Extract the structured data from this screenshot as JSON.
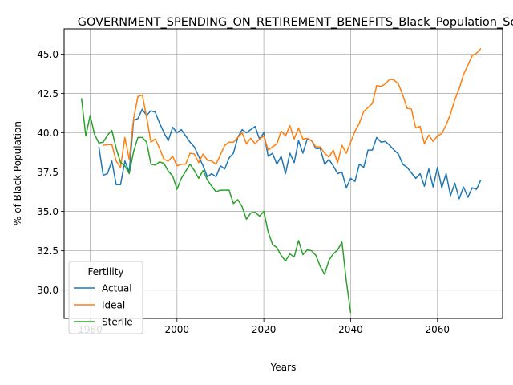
{
  "chart_data": {
    "type": "line",
    "title": "GOVERNMENT_SPENDING_ON_RETIREMENT_BENEFITS_Black_Population_Sco",
    "xlabel": "Years",
    "ylabel": "% of Black Population",
    "xlim": [
      1974,
      2075
    ],
    "ylim": [
      28.2,
      46.6
    ],
    "xticks": [
      1980,
      2000,
      2020,
      2040,
      2060
    ],
    "yticks": [
      30.0,
      32.5,
      35.0,
      37.5,
      40.0,
      42.5,
      45.0
    ],
    "xtick_labels": [
      "1980",
      "2000",
      "2020",
      "2040",
      "2060"
    ],
    "ytick_labels": [
      "30.0",
      "32.5",
      "35.0",
      "37.5",
      "40.0",
      "42.5",
      "45.0"
    ],
    "grid": true,
    "legend": {
      "title": "Fertility",
      "position": "lower-left"
    },
    "series": [
      {
        "name": "Actual",
        "color": "#1f77b4",
        "x": [
          1982,
          1983,
          1984,
          1985,
          1986,
          1987,
          1988,
          1989,
          1990,
          1991,
          1992,
          1993,
          1994,
          1995,
          1996,
          1997,
          1998,
          1999,
          2000,
          2001,
          2002,
          2003,
          2004,
          2005,
          2006,
          2007,
          2008,
          2009,
          2010,
          2011,
          2012,
          2013,
          2014,
          2015,
          2016,
          2017,
          2018,
          2019,
          2020,
          2021,
          2022,
          2023,
          2024,
          2025,
          2026,
          2027,
          2028,
          2029,
          2030,
          2031,
          2032,
          2033,
          2034,
          2035,
          2036,
          2037,
          2038,
          2039,
          2040,
          2041,
          2042,
          2043,
          2044,
          2045,
          2046,
          2047,
          2048,
          2049,
          2050,
          2051,
          2052,
          2053,
          2054,
          2055,
          2056,
          2057,
          2058,
          2059,
          2060,
          2061,
          2062,
          2063,
          2064,
          2065,
          2066,
          2067,
          2068,
          2069,
          2070
        ],
        "values": [
          39.1,
          37.3,
          37.4,
          38.2,
          36.7,
          36.7,
          38.2,
          37.5,
          40.8,
          40.9,
          41.5,
          41.1,
          41.4,
          41.3,
          40.6,
          40.0,
          39.5,
          40.35,
          40.0,
          40.2,
          39.8,
          39.4,
          39.1,
          38.5,
          37.9,
          37.2,
          37.4,
          37.2,
          37.9,
          37.7,
          38.4,
          38.7,
          39.7,
          40.2,
          40.0,
          40.2,
          40.4,
          39.6,
          40.0,
          38.5,
          38.7,
          38.0,
          38.5,
          37.4,
          38.7,
          38.1,
          39.5,
          38.7,
          39.6,
          39.5,
          39.0,
          39.0,
          38.0,
          38.3,
          37.9,
          37.4,
          37.5,
          36.5,
          37.1,
          36.9,
          38.0,
          37.8,
          38.9,
          38.9,
          39.7,
          39.4,
          39.45,
          39.2,
          38.9,
          38.65,
          38.0,
          37.8,
          37.45,
          37.1,
          37.4,
          36.6,
          37.7,
          36.55,
          37.8,
          36.5,
          37.4,
          36.0,
          36.8,
          35.8,
          36.55,
          35.9,
          36.5,
          36.4,
          37.0
        ]
      },
      {
        "name": "Ideal",
        "color": "#ff7f0e",
        "x": [
          1983,
          1984,
          1985,
          1986,
          1987,
          1988,
          1989,
          1990,
          1991,
          1992,
          1993,
          1994,
          1995,
          1996,
          1997,
          1998,
          1999,
          2000,
          2001,
          2002,
          2003,
          2004,
          2005,
          2006,
          2007,
          2008,
          2009,
          2010,
          2011,
          2012,
          2013,
          2014,
          2015,
          2016,
          2017,
          2018,
          2019,
          2020,
          2021,
          2022,
          2023,
          2024,
          2025,
          2026,
          2027,
          2028,
          2029,
          2030,
          2031,
          2032,
          2033,
          2034,
          2035,
          2036,
          2037,
          2038,
          2039,
          2040,
          2041,
          2042,
          2043,
          2044,
          2045,
          2046,
          2047,
          2048,
          2049,
          2050,
          2051,
          2052,
          2053,
          2054,
          2055,
          2056,
          2057,
          2058,
          2059,
          2060,
          2061,
          2062,
          2063,
          2064,
          2065,
          2066,
          2067,
          2068,
          2069,
          2070
        ],
        "values": [
          39.2,
          39.25,
          39.25,
          38.2,
          37.8,
          39.7,
          38.3,
          40.9,
          42.3,
          42.4,
          41.0,
          39.4,
          39.6,
          39.0,
          38.3,
          38.2,
          38.5,
          37.9,
          38.0,
          38.0,
          38.7,
          38.65,
          38.1,
          38.65,
          38.25,
          38.2,
          38.0,
          38.6,
          39.2,
          39.4,
          39.4,
          39.7,
          40.0,
          39.3,
          39.65,
          39.3,
          39.6,
          39.8,
          38.9,
          39.1,
          39.3,
          40.1,
          39.8,
          40.45,
          39.6,
          40.3,
          39.6,
          39.65,
          39.5,
          39.1,
          39.1,
          38.7,
          38.45,
          38.9,
          38.1,
          39.2,
          38.7,
          39.4,
          40.1,
          40.6,
          41.35,
          41.6,
          41.85,
          43.0,
          42.95,
          43.1,
          43.4,
          43.35,
          43.1,
          42.4,
          41.55,
          41.5,
          40.3,
          40.4,
          39.3,
          39.85,
          39.45,
          39.8,
          39.95,
          40.5,
          41.2,
          42.1,
          42.8,
          43.7,
          44.3,
          44.9,
          45.05,
          45.35
        ]
      },
      {
        "name": "Sterile",
        "color": "#2ca02c",
        "x": [
          1978,
          1979,
          1980,
          1981,
          1982,
          1983,
          1984,
          1985,
          1986,
          1987,
          1988,
          1989,
          1990,
          1991,
          1992,
          1993,
          1994,
          1995,
          1996,
          1997,
          1998,
          1999,
          2000,
          2001,
          2002,
          2003,
          2004,
          2005,
          2006,
          2007,
          2008,
          2009,
          2010,
          2011,
          2012,
          2013,
          2014,
          2015,
          2016,
          2017,
          2018,
          2019,
          2020,
          2021,
          2022,
          2023,
          2024,
          2025,
          2026,
          2027,
          2028,
          2029,
          2030,
          2031,
          2032,
          2033,
          2034,
          2035,
          2036,
          2037,
          2038,
          2039,
          2040
        ],
        "values": [
          42.2,
          39.8,
          41.1,
          39.9,
          39.35,
          39.4,
          39.85,
          40.15,
          39.0,
          38.1,
          37.9,
          37.4,
          38.8,
          39.7,
          39.7,
          39.4,
          38.0,
          37.95,
          38.15,
          38.05,
          37.55,
          37.25,
          36.4,
          37.1,
          37.55,
          38.0,
          37.6,
          37.1,
          37.6,
          37.0,
          36.6,
          36.25,
          36.35,
          36.35,
          36.35,
          35.5,
          35.75,
          35.3,
          34.5,
          34.9,
          34.95,
          34.7,
          35.0,
          33.7,
          32.9,
          32.7,
          32.2,
          31.85,
          32.3,
          32.1,
          33.15,
          32.25,
          32.55,
          32.5,
          32.2,
          31.5,
          31.0,
          31.9,
          32.3,
          32.55,
          33.05,
          30.6,
          28.55
        ]
      }
    ]
  }
}
